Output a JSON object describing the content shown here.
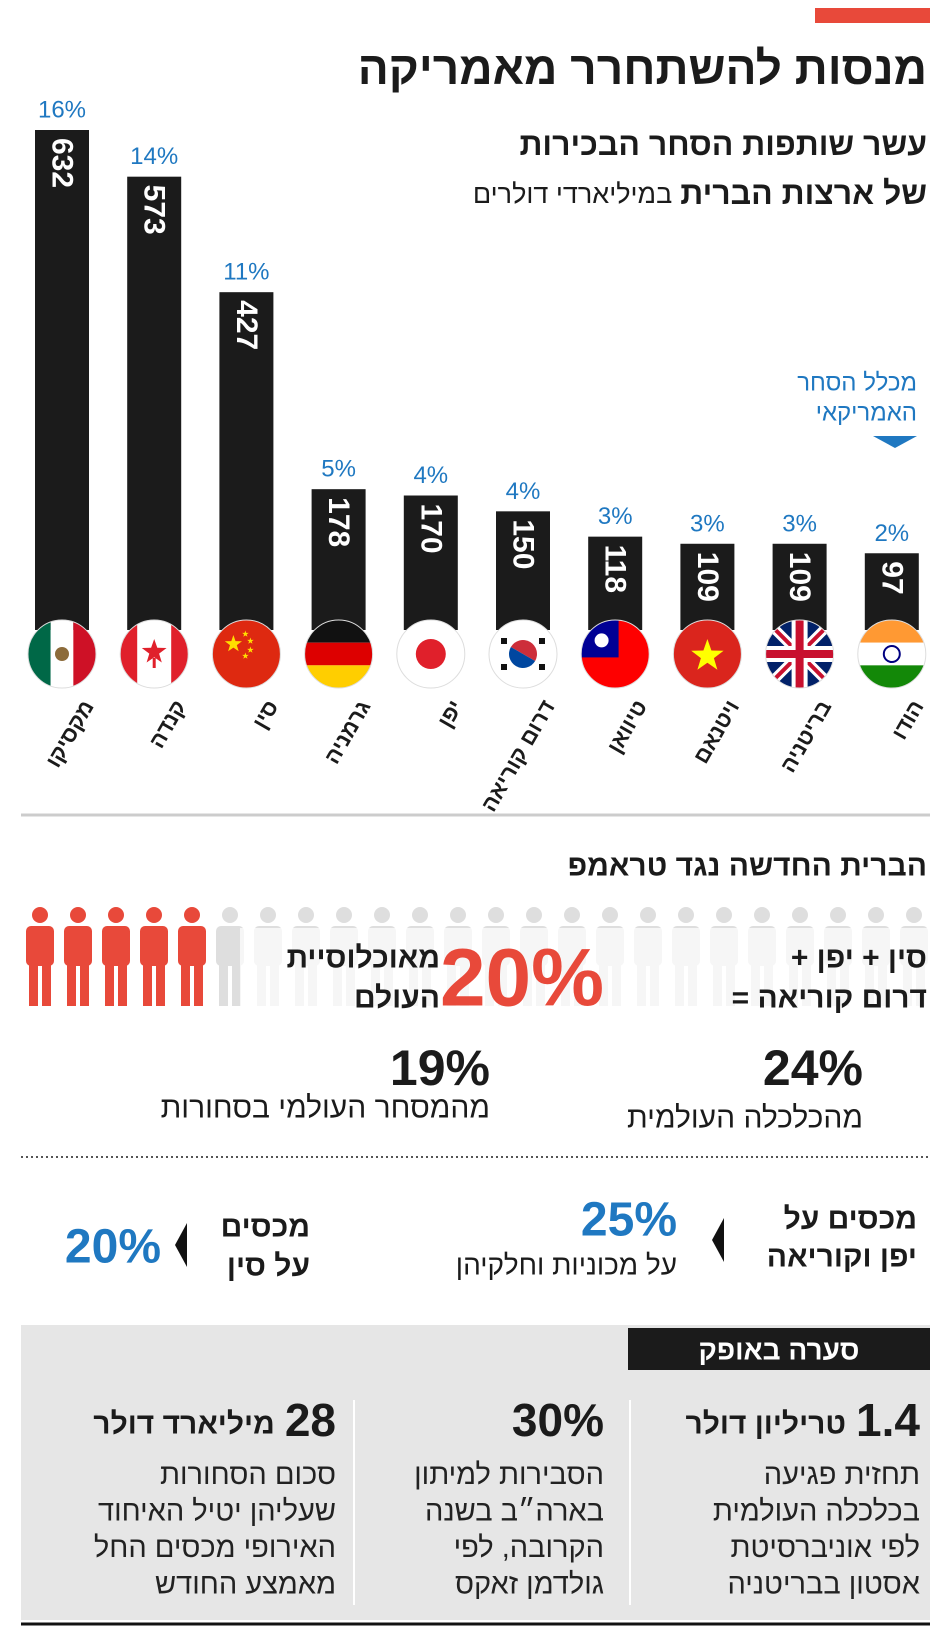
{
  "header": {
    "title": "מנסות להשתחרר מאמריקה"
  },
  "chart_data": {
    "type": "bar",
    "title": "עשר שותפות הסחר הבכירות",
    "subtitle": "של ארצות הברית",
    "unit": "במיליארדי דולרים",
    "annotation": [
      "מכלל הסחר",
      "האמריקאי"
    ],
    "categories": [
      "מקסיקו",
      "קנדה",
      "סין",
      "גרמניה",
      "יפן",
      "דרום קוריאה",
      "טיוואן",
      "ויטנאם",
      "בריטניה",
      "הודו"
    ],
    "values": [
      632,
      573,
      427,
      178,
      170,
      150,
      118,
      109,
      109,
      97
    ],
    "share_labels": [
      "16%",
      "14%",
      "11%",
      "5%",
      "4%",
      "4%",
      "3%",
      "3%",
      "3%",
      "2%"
    ],
    "color": "#1b1b1b",
    "share_color": "#1f78c1"
  },
  "alliance": {
    "title": "הברית החדשה נגד טראמפ",
    "members": [
      "סין + יפן +",
      "דרום קוריאה ="
    ],
    "population": {
      "value": 20,
      "label": "20%"
    },
    "population_text": [
      "מאוכלוסיית",
      "העולם"
    ],
    "stats": [
      {
        "value": "24%",
        "text": "מהכלכלה העולמית"
      },
      {
        "value": "19%",
        "text": "מהמסחר העולמי בסחורות"
      }
    ]
  },
  "tariffs": [
    {
      "lines": [
        "מכסים על",
        "יפן וקוריאה"
      ],
      "value": "25%",
      "note": "על מכוניות וחלקיהן"
    },
    {
      "lines": [
        "מכסים",
        "על סין"
      ],
      "value": "20%"
    }
  ],
  "storm": {
    "title": "סערה באופק",
    "columns": [
      {
        "number": "1.4",
        "unit": "טריליון דולר",
        "lines": [
          "תחזית פגיעה",
          "בכלכלה העולמית",
          "לפי אוניברסיטת",
          "אסטון בבריטניה"
        ]
      },
      {
        "number": "30%",
        "lines": [
          "הסבירות למיתון",
          "בארה״ב בשנה",
          "הקרובה, לפי",
          "גולדמן זאקס"
        ]
      },
      {
        "number": "28",
        "unit": "מיליארד דולר",
        "lines": [
          "סכום הסחורות",
          "שעליהן יטיל האיחוד",
          "האירופי מכסים החל",
          "מאמצע החודש"
        ]
      }
    ]
  }
}
